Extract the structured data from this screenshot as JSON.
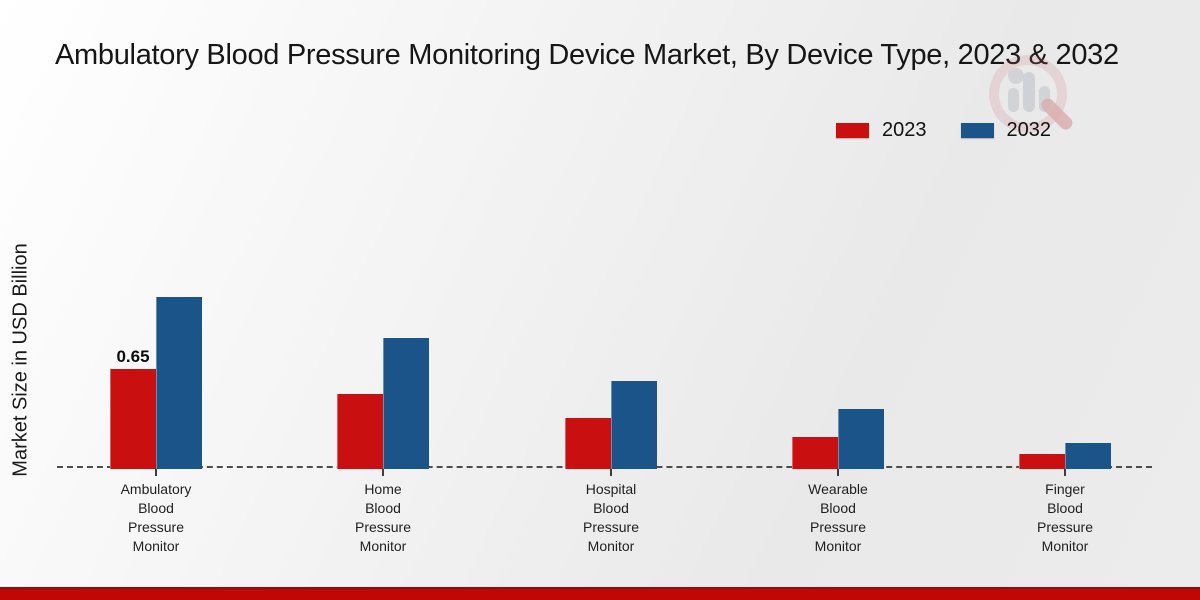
{
  "chart_data": {
    "type": "bar",
    "title": "Ambulatory Blood Pressure Monitoring Device Market, By Device Type, 2023 & 2032",
    "xlabel": "",
    "ylabel": "Market Size in USD Billion",
    "categories": [
      "Ambulatory Blood Pressure Monitor",
      "Home Blood Pressure Monitor",
      "Hospital Blood Pressure Monitor",
      "Wearable Blood Pressure Monitor",
      "Finger Blood Pressure Monitor"
    ],
    "category_lines": [
      [
        "Ambulatory",
        "Blood",
        "Pressure",
        "Monitor"
      ],
      [
        "Home",
        "Blood",
        "Pressure",
        "Monitor"
      ],
      [
        "Hospital",
        "Blood",
        "Pressure",
        "Monitor"
      ],
      [
        "Wearable",
        "Blood",
        "Pressure",
        "Monitor"
      ],
      [
        "Finger",
        "Blood",
        "Pressure",
        "Monitor"
      ]
    ],
    "series": [
      {
        "name": "2023",
        "color": "#c90f10",
        "values": [
          0.65,
          0.49,
          0.33,
          0.21,
          0.1
        ]
      },
      {
        "name": "2032",
        "color": "#1a5489",
        "values": [
          1.12,
          0.85,
          0.57,
          0.39,
          0.17
        ]
      }
    ],
    "data_labels": [
      {
        "series": "2023",
        "category_index": 0,
        "text": "0.65"
      }
    ],
    "ylim": [
      0,
      1.25
    ],
    "grid": false,
    "legend_position": "top-right",
    "baseline_style": "dashed"
  },
  "legend": {
    "items": [
      {
        "label": "2023",
        "color": "#c90f10"
      },
      {
        "label": "2032",
        "color": "#1a5489"
      }
    ]
  },
  "icons": {
    "watermark": "market-research-logo-watermark"
  },
  "colors": {
    "bar_2023": "#c90f10",
    "bar_2032": "#1a5489",
    "footer_strip": "#c10606",
    "baseline": "#4d4d4d"
  }
}
